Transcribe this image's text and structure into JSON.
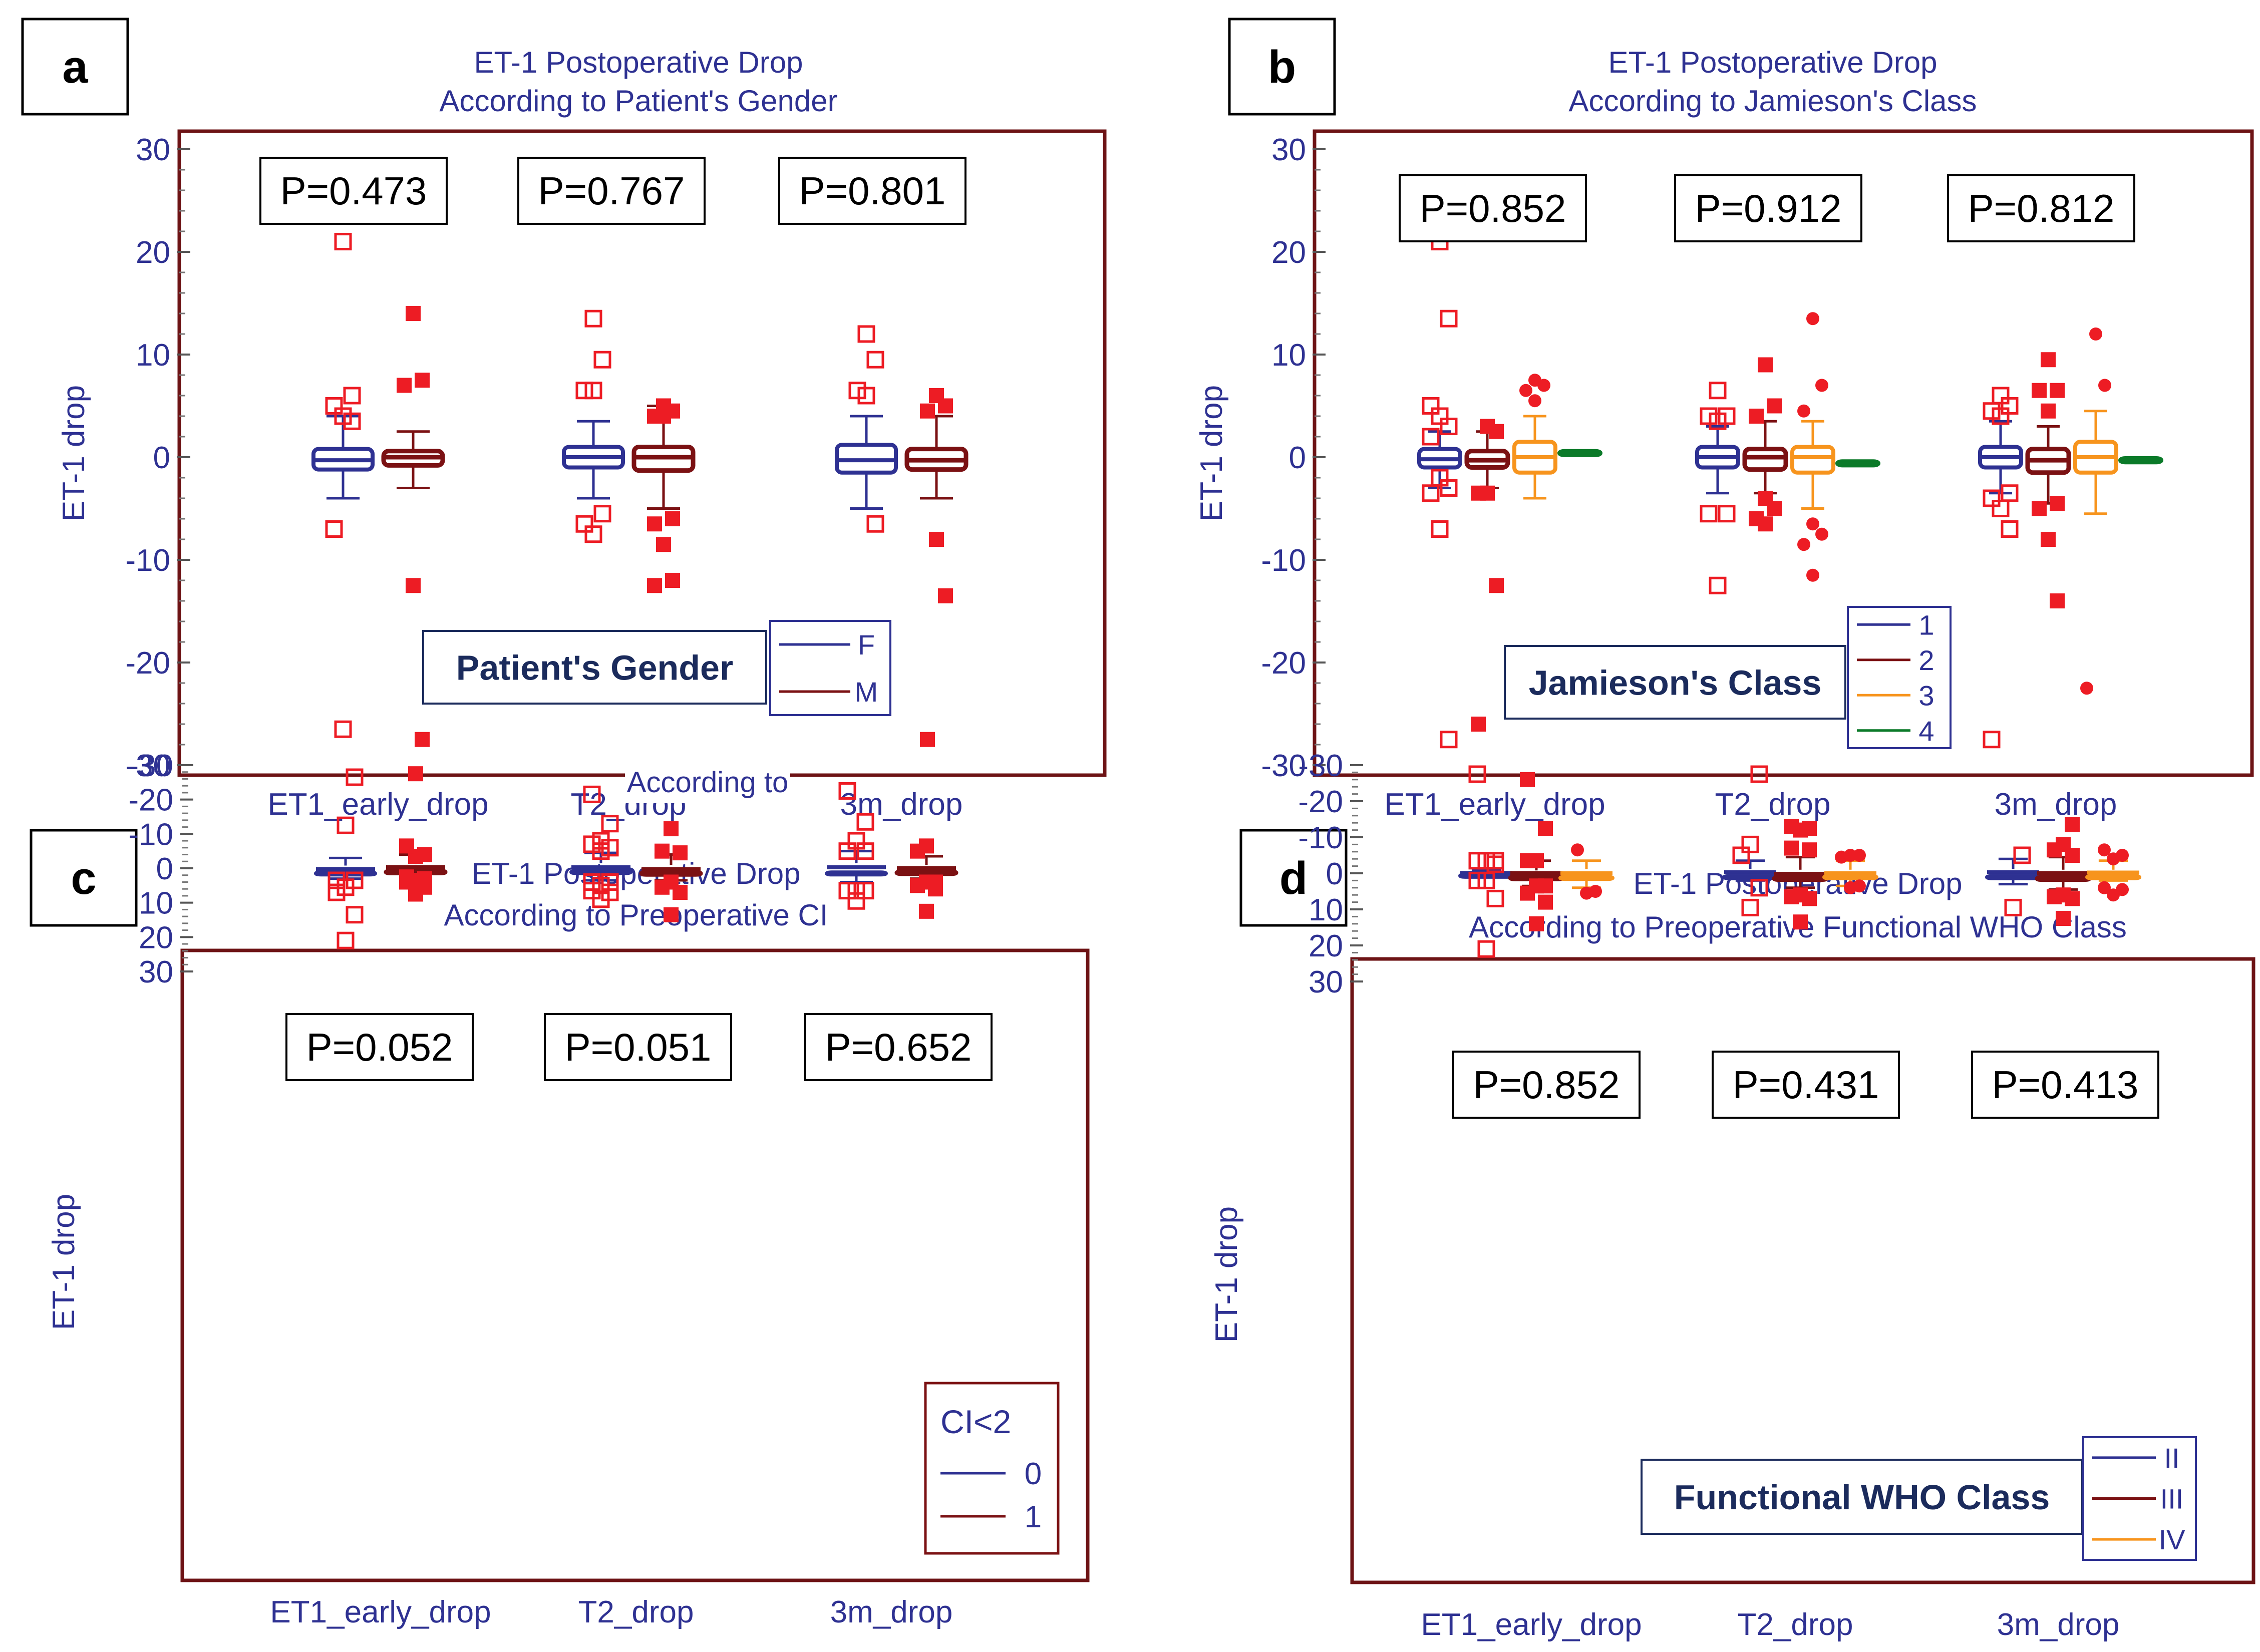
{
  "colors": {
    "blue": "#2e3192",
    "dark_red": "#7b1113",
    "red": "#ed1c24",
    "orange": "#f7941d",
    "yellow": "#f9c623",
    "green": "#0b7a29",
    "frame": "#6d1315",
    "legend_title": "#1b2b5c"
  },
  "chart_data": [
    {
      "panel_letter": "a",
      "type": "box",
      "title": "ET-1 Postoperative Drop",
      "subtitle": "According to Patient's Gender",
      "ylabel": "ET-1 drop",
      "ylim": [
        -30,
        30
      ],
      "yticks": [
        -30,
        -20,
        -10,
        0,
        10,
        20,
        30
      ],
      "ytick_labels": [
        "-30",
        "-20",
        "-10",
        "0",
        "10",
        "20",
        "30"
      ],
      "categories": [
        "ET1_early_drop",
        "T2_drop",
        "3m_drop"
      ],
      "pvalues": [
        "P=0.473",
        "P=0.767",
        "P=0.801"
      ],
      "stray_label": "According to",
      "legend": {
        "title": "Patient's Gender",
        "entries": [
          "F",
          "M"
        ],
        "placement": "bottom-center"
      },
      "series": [
        {
          "name": "F",
          "color_key": "blue",
          "marker": "hollow-square",
          "stats": [
            {
              "q1": -1.2,
              "median": -0.3,
              "q3": 0.8,
              "whisker_low": -4,
              "whisker_high": 4,
              "outliers": [
                21,
                6,
                5,
                4,
                3.5,
                -7,
                -26.5
              ]
            },
            {
              "q1": -1.0,
              "median": 0,
              "q3": 1.0,
              "whisker_low": -4,
              "whisker_high": 3.5,
              "outliers": [
                13.5,
                9.5,
                6.5,
                6.5,
                -5.5,
                -6.5,
                -7.5
              ]
            },
            {
              "q1": -1.5,
              "median": -0.3,
              "q3": 1.2,
              "whisker_low": -5,
              "whisker_high": 4,
              "outliers": [
                12,
                9.5,
                6.5,
                6,
                -6.5
              ]
            }
          ]
        },
        {
          "name": "M",
          "color_key": "dark_red",
          "marker": "filled-square",
          "stats": [
            {
              "q1": -0.8,
              "median": 0,
              "q3": 0.6,
              "whisker_low": -3,
              "whisker_high": 2.5,
              "outliers": [
                14,
                7.5,
                7,
                -12.5,
                -27.5
              ]
            },
            {
              "q1": -1.3,
              "median": 0,
              "q3": 1.0,
              "whisker_low": -5,
              "whisker_high": 5,
              "outliers": [
                5,
                4.5,
                4,
                4,
                -6,
                -6.5,
                -8.5,
                -12,
                -12.5
              ]
            },
            {
              "q1": -1.2,
              "median": -0.3,
              "q3": 0.8,
              "whisker_low": -4,
              "whisker_high": 4,
              "outliers": [
                6,
                5,
                4.5,
                -8,
                -13.5,
                -27.5
              ]
            }
          ]
        }
      ]
    },
    {
      "panel_letter": "b",
      "type": "box",
      "title": "ET-1 Postoperative Drop",
      "subtitle": "According to Jamieson's Class",
      "ylabel": "ET-1 drop",
      "ylim": [
        -30,
        30
      ],
      "yticks": [
        -30,
        -20,
        -10,
        0,
        10,
        20,
        30
      ],
      "ytick_labels": [
        "-30",
        "-20",
        "-10",
        "0",
        "10",
        "20",
        "30"
      ],
      "categories": [
        "ET1_early_drop",
        "T2_drop",
        "3m_drop"
      ],
      "pvalues": [
        "P=0.852",
        "P=0.912",
        "P=0.812"
      ],
      "legend": {
        "title": "Jamieson's Class",
        "entries": [
          "1",
          "2",
          "3",
          "4"
        ],
        "placement": "bottom-center"
      },
      "series": [
        {
          "name": "1",
          "color_key": "blue",
          "marker": "hollow-square",
          "stats": [
            {
              "q1": -1.0,
              "median": -0.2,
              "q3": 0.8,
              "whisker_low": -3,
              "whisker_high": 2.5,
              "outliers": [
                21,
                13.5,
                5,
                4,
                3,
                2,
                -2,
                -3,
                -3.5,
                -7,
                -27.5
              ]
            },
            {
              "q1": -1.0,
              "median": 0,
              "q3": 1.0,
              "whisker_low": -3.5,
              "whisker_high": 3,
              "outliers": [
                6.5,
                4,
                4,
                3.5,
                -5.5,
                -5.5,
                -12.5
              ]
            },
            {
              "q1": -1.0,
              "median": 0,
              "q3": 1.0,
              "whisker_low": -3.5,
              "whisker_high": 3.5,
              "outliers": [
                6,
                5,
                4.5,
                4,
                -3.5,
                -4,
                -5,
                -7,
                -27.5
              ]
            }
          ]
        },
        {
          "name": "2",
          "color_key": "dark_red",
          "marker": "filled-square",
          "stats": [
            {
              "q1": -1.0,
              "median": -0.3,
              "q3": 0.6,
              "whisker_low": -3,
              "whisker_high": 2.5,
              "outliers": [
                3,
                2.5,
                -3.5,
                -3.5,
                -12.5,
                -26
              ]
            },
            {
              "q1": -1.2,
              "median": 0,
              "q3": 0.8,
              "whisker_low": -3.5,
              "whisker_high": 3.5,
              "outliers": [
                9,
                5,
                4,
                -4,
                -5,
                -6,
                -6.5
              ]
            },
            {
              "q1": -1.5,
              "median": -0.3,
              "q3": 0.8,
              "whisker_low": -4.5,
              "whisker_high": 3,
              "outliers": [
                9.5,
                6.5,
                6.5,
                4.5,
                -4.5,
                -5,
                -8,
                -14
              ]
            }
          ]
        },
        {
          "name": "3",
          "color_key": "orange",
          "marker": "filled-dot",
          "stats": [
            {
              "q1": -1.5,
              "median": 0,
              "q3": 1.5,
              "whisker_low": -4,
              "whisker_high": 4,
              "outliers": [
                7.5,
                7,
                6.5,
                5.5
              ]
            },
            {
              "q1": -1.5,
              "median": 0,
              "q3": 1.0,
              "whisker_low": -5,
              "whisker_high": 3.5,
              "outliers": [
                13.5,
                7,
                4.5,
                -6.5,
                -7.5,
                -8.5,
                -11.5
              ]
            },
            {
              "q1": -1.5,
              "median": 0,
              "q3": 1.5,
              "whisker_low": -5.5,
              "whisker_high": 4.5,
              "outliers": [
                12,
                7,
                -22.5
              ]
            }
          ]
        },
        {
          "name": "4",
          "color_key": "green",
          "marker": "triangle",
          "stats": [
            {
              "q1": 0.2,
              "median": 0.4,
              "q3": 0.6,
              "whisker_low": 0.2,
              "whisker_high": 0.6,
              "outliers": []
            },
            {
              "q1": -0.8,
              "median": -0.6,
              "q3": -0.4,
              "whisker_low": -0.8,
              "whisker_high": -0.4,
              "outliers": []
            },
            {
              "q1": -0.5,
              "median": -0.3,
              "q3": -0.1,
              "whisker_low": -0.5,
              "whisker_high": -0.1,
              "outliers": []
            }
          ]
        }
      ]
    },
    {
      "panel_letter": "c",
      "type": "box",
      "title": "ET-1 Postoperative Drop",
      "subtitle": "According to Preoperative CI",
      "ylabel": "ET-1 drop",
      "ylim": [
        -30,
        30
      ],
      "yticks": [
        -30,
        -20,
        -10,
        0,
        10,
        20,
        30
      ],
      "ytick_labels": [
        "-30",
        "-20",
        "-10",
        "0",
        "10",
        "20",
        "30"
      ],
      "categories": [
        "ET1_early_drop",
        "T2_drop",
        "3m_drop"
      ],
      "pvalues": [
        "P=0.052",
        "P=0.051",
        "P=0.652"
      ],
      "legend": {
        "title": "CI<2",
        "entries": [
          "0",
          "1"
        ],
        "placement": "bottom-right"
      },
      "series": [
        {
          "name": "0",
          "color_key": "blue",
          "marker": "hollow-square",
          "stats": [
            {
              "q1": -0.8,
              "median": 0.2,
              "q3": 1.2,
              "whisker_low": -3,
              "whisker_high": 3,
              "outliers": [
                21,
                13.5,
                7,
                5.5,
                3.5,
                3.5,
                -12.5,
                -26.5
              ]
            },
            {
              "q1": -1.5,
              "median": -0.3,
              "q3": 0.8,
              "whisker_low": -4.5,
              "whisker_high": 3.5,
              "outliers": [
                9,
                7,
                6.5,
                5,
                4,
                4,
                -5,
                -6,
                -7,
                -8,
                -13,
                -21.5
              ]
            },
            {
              "q1": -1.5,
              "median": -0.3,
              "q3": 1.2,
              "whisker_low": -5,
              "whisker_high": 4,
              "outliers": [
                9.5,
                6.5,
                6.5,
                6.5,
                -5,
                -5,
                -8,
                -13.5,
                -22.5
              ]
            }
          ]
        },
        {
          "name": "1",
          "color_key": "dark_red",
          "marker": "filled-square",
          "stats": [
            {
              "q1": -1.2,
              "median": -0.3,
              "q3": 0.8,
              "whisker_low": -4,
              "whisker_high": 3,
              "outliers": [
                7.5,
                5.5,
                4,
                3.5,
                3,
                2.5,
                -3.5,
                -4,
                -6.5,
                -27.5
              ]
            },
            {
              "q1": -1.0,
              "median": 0.3,
              "q3": 1.2,
              "whisker_low": -4,
              "whisker_high": 3.5,
              "outliers": [
                13.5,
                7,
                5.5,
                4,
                -4.5,
                -5,
                -11.5
              ]
            },
            {
              "q1": -1.0,
              "median": 0,
              "q3": 1.0,
              "whisker_low": -3.5,
              "whisker_high": 3,
              "outliers": [
                12.5,
                6,
                5,
                4,
                4,
                -5,
                -6.5
              ]
            }
          ]
        }
      ]
    },
    {
      "panel_letter": "d",
      "type": "box",
      "title": "ET-1 Postoperative Drop",
      "subtitle": "According to Preoperative Functional WHO Class",
      "ylabel": "ET-1 drop",
      "ylim": [
        -30,
        30
      ],
      "yticks": [
        -30,
        -20,
        -10,
        0,
        10,
        20,
        30
      ],
      "ytick_labels": [
        "-30",
        "-20",
        "-10",
        "0",
        "10",
        "20",
        "30"
      ],
      "categories": [
        "ET1_early_drop",
        "T2_drop",
        "3m_drop"
      ],
      "pvalues": [
        "P=0.852",
        "P=0.431",
        "P=0.413"
      ],
      "legend": {
        "title": "Functional WHO Class",
        "entries": [
          "II",
          "III",
          "IV"
        ],
        "placement": "bottom-center"
      },
      "series": [
        {
          "name": "II",
          "color_key": "blue",
          "marker": "hollow-square",
          "stats": [
            {
              "q1": -0.6,
              "median": -0.1,
              "q3": 0.4,
              "whisker_low": -1,
              "whisker_high": 1,
              "outliers": [
                21,
                7,
                2,
                2,
                -2.5,
                -3.5,
                -3.5,
                -3.5,
                -27.5
              ]
            },
            {
              "q1": -1.2,
              "median": -0.3,
              "q3": 0.8,
              "whisker_low": -3.5,
              "whisker_high": 2,
              "outliers": [
                9.5,
                4,
                -5,
                -8,
                -27.5
              ]
            },
            {
              "q1": -1.2,
              "median": -0.3,
              "q3": 0.8,
              "whisker_low": -4,
              "whisker_high": 3,
              "outliers": [
                9.5,
                -5
              ]
            }
          ]
        },
        {
          "name": "III",
          "color_key": "dark_red",
          "marker": "filled-square",
          "stats": [
            {
              "q1": -0.8,
              "median": 0,
              "q3": 1.0,
              "whisker_low": -3.5,
              "whisker_high": 3.5,
              "outliers": [
                14,
                8,
                5.5,
                3.5,
                3.5,
                -3.5,
                -3.5,
                -12.5,
                -26
              ]
            },
            {
              "q1": -1.0,
              "median": 0.2,
              "q3": 1.2,
              "whisker_low": -4.5,
              "whisker_high": 4,
              "outliers": [
                13.5,
                7,
                6.5,
                6,
                -6.5,
                -7,
                -12,
                -12.5,
                -13
              ]
            },
            {
              "q1": -1.0,
              "median": 0,
              "q3": 1.2,
              "whisker_low": -4.5,
              "whisker_high": 4.5,
              "outliers": [
                12.5,
                7,
                6.5,
                6,
                -5,
                -6.5,
                -8,
                -13.5
              ]
            }
          ]
        },
        {
          "name": "IV",
          "color_key": "orange",
          "marker": "filled-dot",
          "stats": [
            {
              "q1": -1.2,
              "median": 0,
              "q3": 1.0,
              "whisker_low": -3.5,
              "whisker_high": 4,
              "outliers": [
                5.5,
                5,
                -6.5
              ]
            },
            {
              "q1": -1.0,
              "median": 0,
              "q3": 0.8,
              "whisker_low": -3.5,
              "whisker_high": 3.5,
              "outliers": [
                4,
                3.5,
                -4.5,
                -5,
                -5
              ]
            },
            {
              "q1": -1.0,
              "median": -0.2,
              "q3": 0.8,
              "whisker_low": -3.5,
              "whisker_high": 2,
              "outliers": [
                6,
                4.5,
                4,
                -4,
                -5,
                -6.5
              ]
            }
          ]
        }
      ]
    }
  ]
}
